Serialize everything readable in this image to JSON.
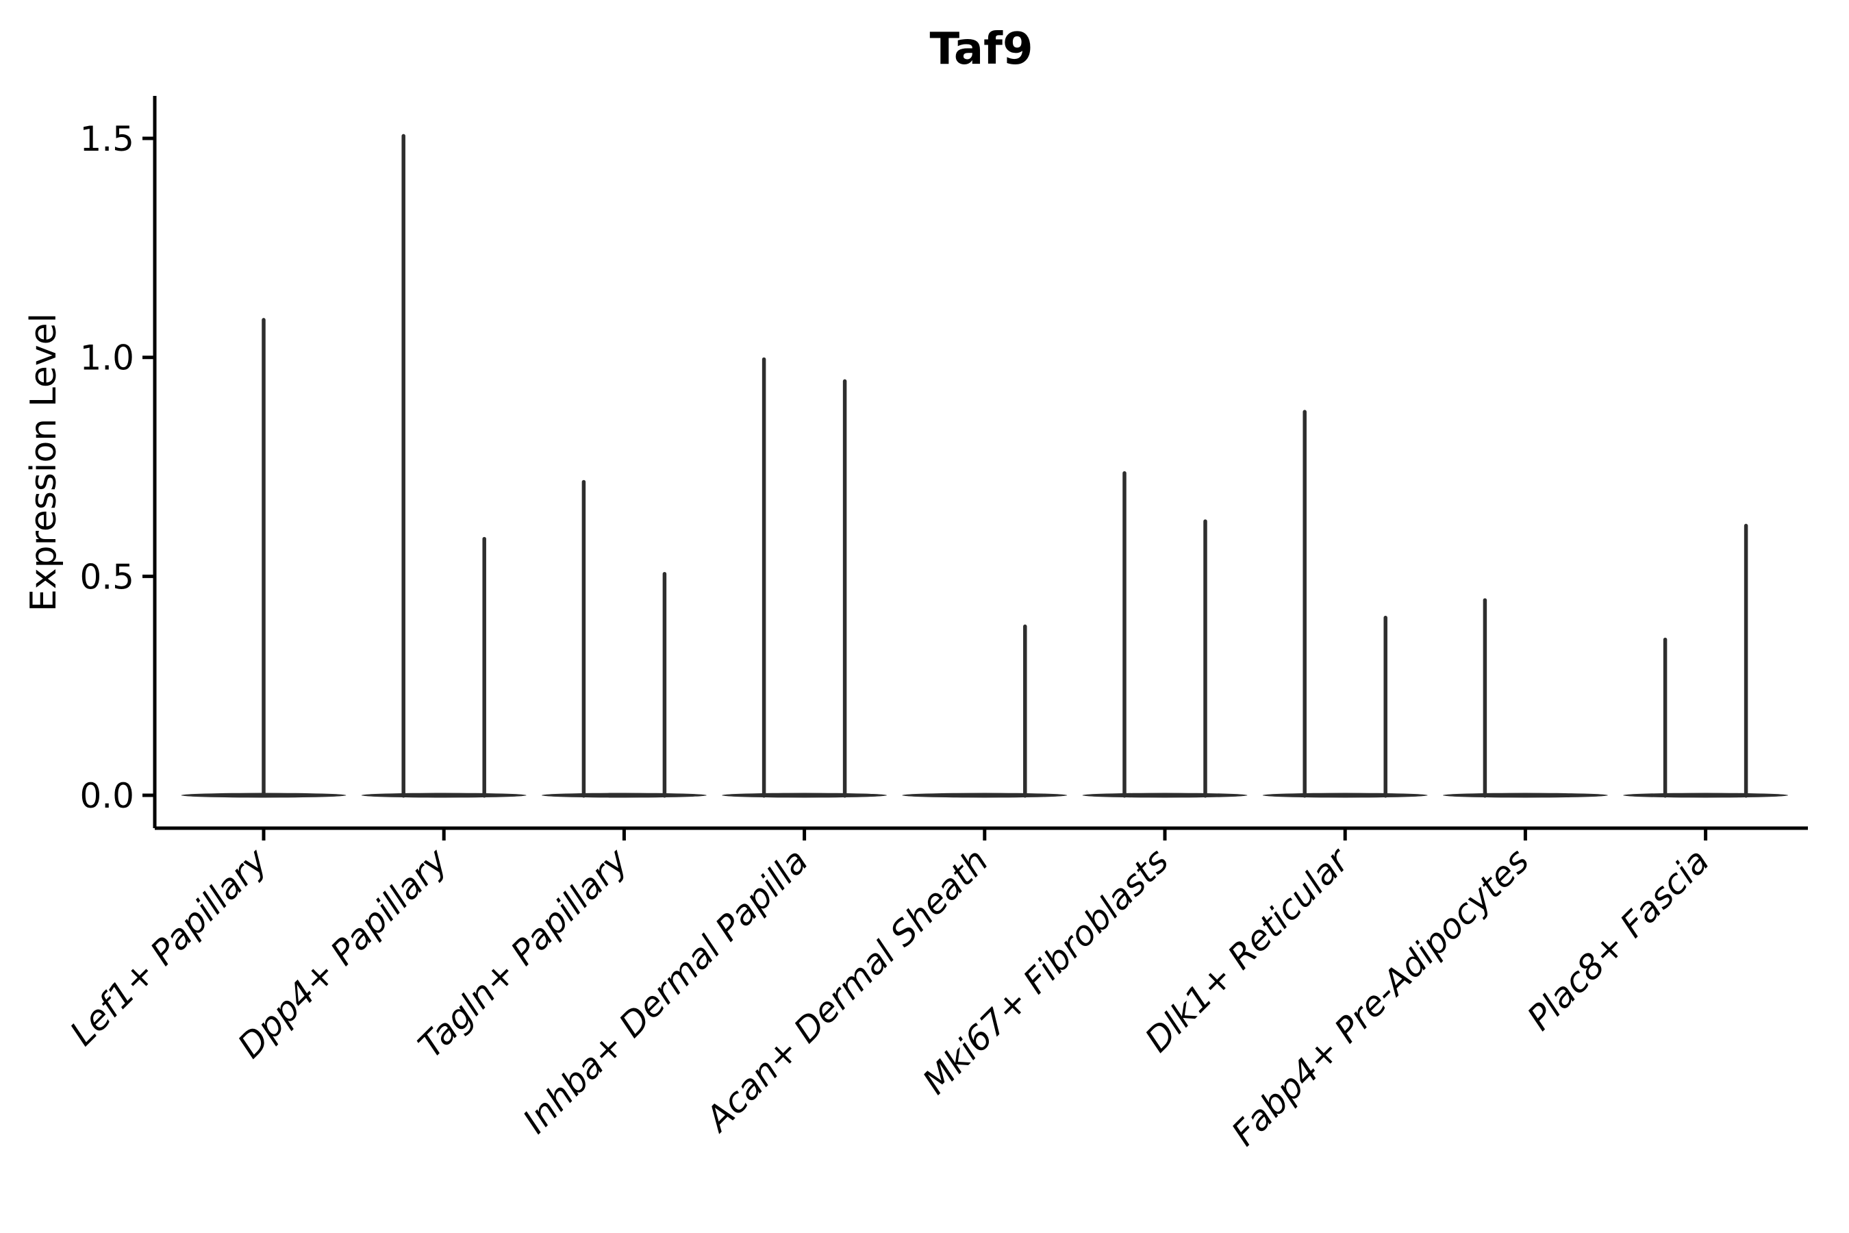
{
  "figure": {
    "title": "Taf9",
    "ylabel": "Expression Level"
  },
  "chart_data": {
    "type": "violin",
    "title": "Taf9",
    "xlabel": "",
    "ylabel": "Expression Level",
    "ytick_labels": [
      "0.0",
      "0.5",
      "1.0",
      "1.5"
    ],
    "ytick_values": [
      0,
      0.5,
      1,
      1.5
    ],
    "ylim": [
      -0.08,
      1.6
    ],
    "grid": false,
    "legend": "none",
    "description": "Needle-like violin plot of Taf9 expression per fibroblast cell type; each violin is a flat base at 0 (most cells not expressing) with thin spikes reaching the maximum expression value. Most categories contain a left and right sub-violin; spike positions given as offset within the category slot.",
    "categories": [
      "Lef1+ Papillary",
      "Dpp4+ Papillary",
      "Tagln+ Papillary",
      "Inhba+ Dermal Papilla",
      "Acan+ Dermal Sheath",
      "Mki67+ Fibroblasts",
      "Dlk1+ Reticular",
      "Fabp4+ Pre-Adipocytes",
      "Plac8+ Fascia"
    ],
    "violins": [
      {
        "category": "Lef1+ Papillary",
        "base_value": 0,
        "needles": [
          {
            "position": "center",
            "max": 1.09
          }
        ]
      },
      {
        "category": "Dpp4+ Papillary",
        "base_value": 0,
        "needles": [
          {
            "position": "left",
            "max": 1.51
          },
          {
            "position": "right",
            "max": 0.59
          }
        ]
      },
      {
        "category": "Tagln+ Papillary",
        "base_value": 0,
        "needles": [
          {
            "position": "left",
            "max": 0.72
          },
          {
            "position": "right",
            "max": 0.51
          }
        ]
      },
      {
        "category": "Inhba+ Dermal Papilla",
        "base_value": 0,
        "needles": [
          {
            "position": "left",
            "max": 1.0
          },
          {
            "position": "right",
            "max": 0.95
          }
        ]
      },
      {
        "category": "Acan+ Dermal Sheath",
        "base_value": 0,
        "needles": [
          {
            "position": "right",
            "max": 0.39
          }
        ]
      },
      {
        "category": "Mki67+ Fibroblasts",
        "base_value": 0,
        "needles": [
          {
            "position": "left",
            "max": 0.74
          },
          {
            "position": "right",
            "max": 0.63
          }
        ]
      },
      {
        "category": "Dlk1+ Reticular",
        "base_value": 0,
        "needles": [
          {
            "position": "left",
            "max": 0.88
          },
          {
            "position": "right",
            "max": 0.41
          }
        ]
      },
      {
        "category": "Fabp4+ Pre-Adipocytes",
        "base_value": 0,
        "needles": [
          {
            "position": "left",
            "max": 0.45
          }
        ]
      },
      {
        "category": "Plac8+ Fascia",
        "base_value": 0,
        "needles": [
          {
            "position": "left",
            "max": 0.36
          },
          {
            "position": "right",
            "max": 0.62
          }
        ]
      }
    ],
    "colors": {
      "violin": "#2e2e2e",
      "axis": "#000000",
      "text": "#000000",
      "background": "#ffffff"
    }
  }
}
